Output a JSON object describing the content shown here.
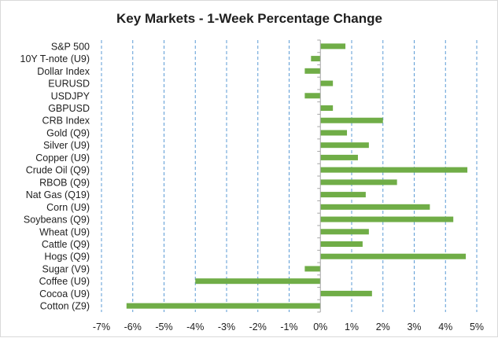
{
  "chart_data": {
    "type": "bar",
    "orientation": "horizontal",
    "title": "Key Markets - 1-Week Percentage Change",
    "categories": [
      "S&P 500",
      "10Y T-note (U9)",
      "Dollar Index",
      "EURUSD",
      "USDJPY",
      "GBPUSD",
      "CRB Index",
      "Gold (Q9)",
      "Silver (U9)",
      "Copper (U9)",
      "Crude Oil (Q9)",
      "RBOB (Q9)",
      "Nat Gas (Q19)",
      "Corn (U9)",
      "Soybeans (Q9)",
      "Wheat (U9)",
      "Cattle (Q9)",
      "Hogs (Q9)",
      "Sugar (V9)",
      "Coffee (U9)",
      "Cocoa (U9)",
      "Cotton (Z9)"
    ],
    "values": [
      0.8,
      -0.3,
      -0.5,
      0.4,
      -0.5,
      0.4,
      2.0,
      0.85,
      1.55,
      1.2,
      4.7,
      2.45,
      1.45,
      3.5,
      4.25,
      1.55,
      1.35,
      4.65,
      -0.5,
      -4.0,
      1.65,
      -6.2
    ],
    "xlim": [
      -7,
      5
    ],
    "ticks": [
      -7,
      -6,
      -5,
      -4,
      -3,
      -2,
      -1,
      0,
      1,
      2,
      3,
      4,
      5
    ],
    "tick_labels": [
      "-7%",
      "-6%",
      "-5%",
      "-4%",
      "-3%",
      "-2%",
      "-1%",
      "0%",
      "1%",
      "2%",
      "3%",
      "4%",
      "5%"
    ],
    "xlabel": "",
    "ylabel": "",
    "grid": "vertical dashed",
    "legend": "none",
    "colors": {
      "bar": "#70ad47",
      "grid": "#5b9bd5",
      "axis": "#a6a6a6",
      "text": "#1f1f1f"
    }
  }
}
